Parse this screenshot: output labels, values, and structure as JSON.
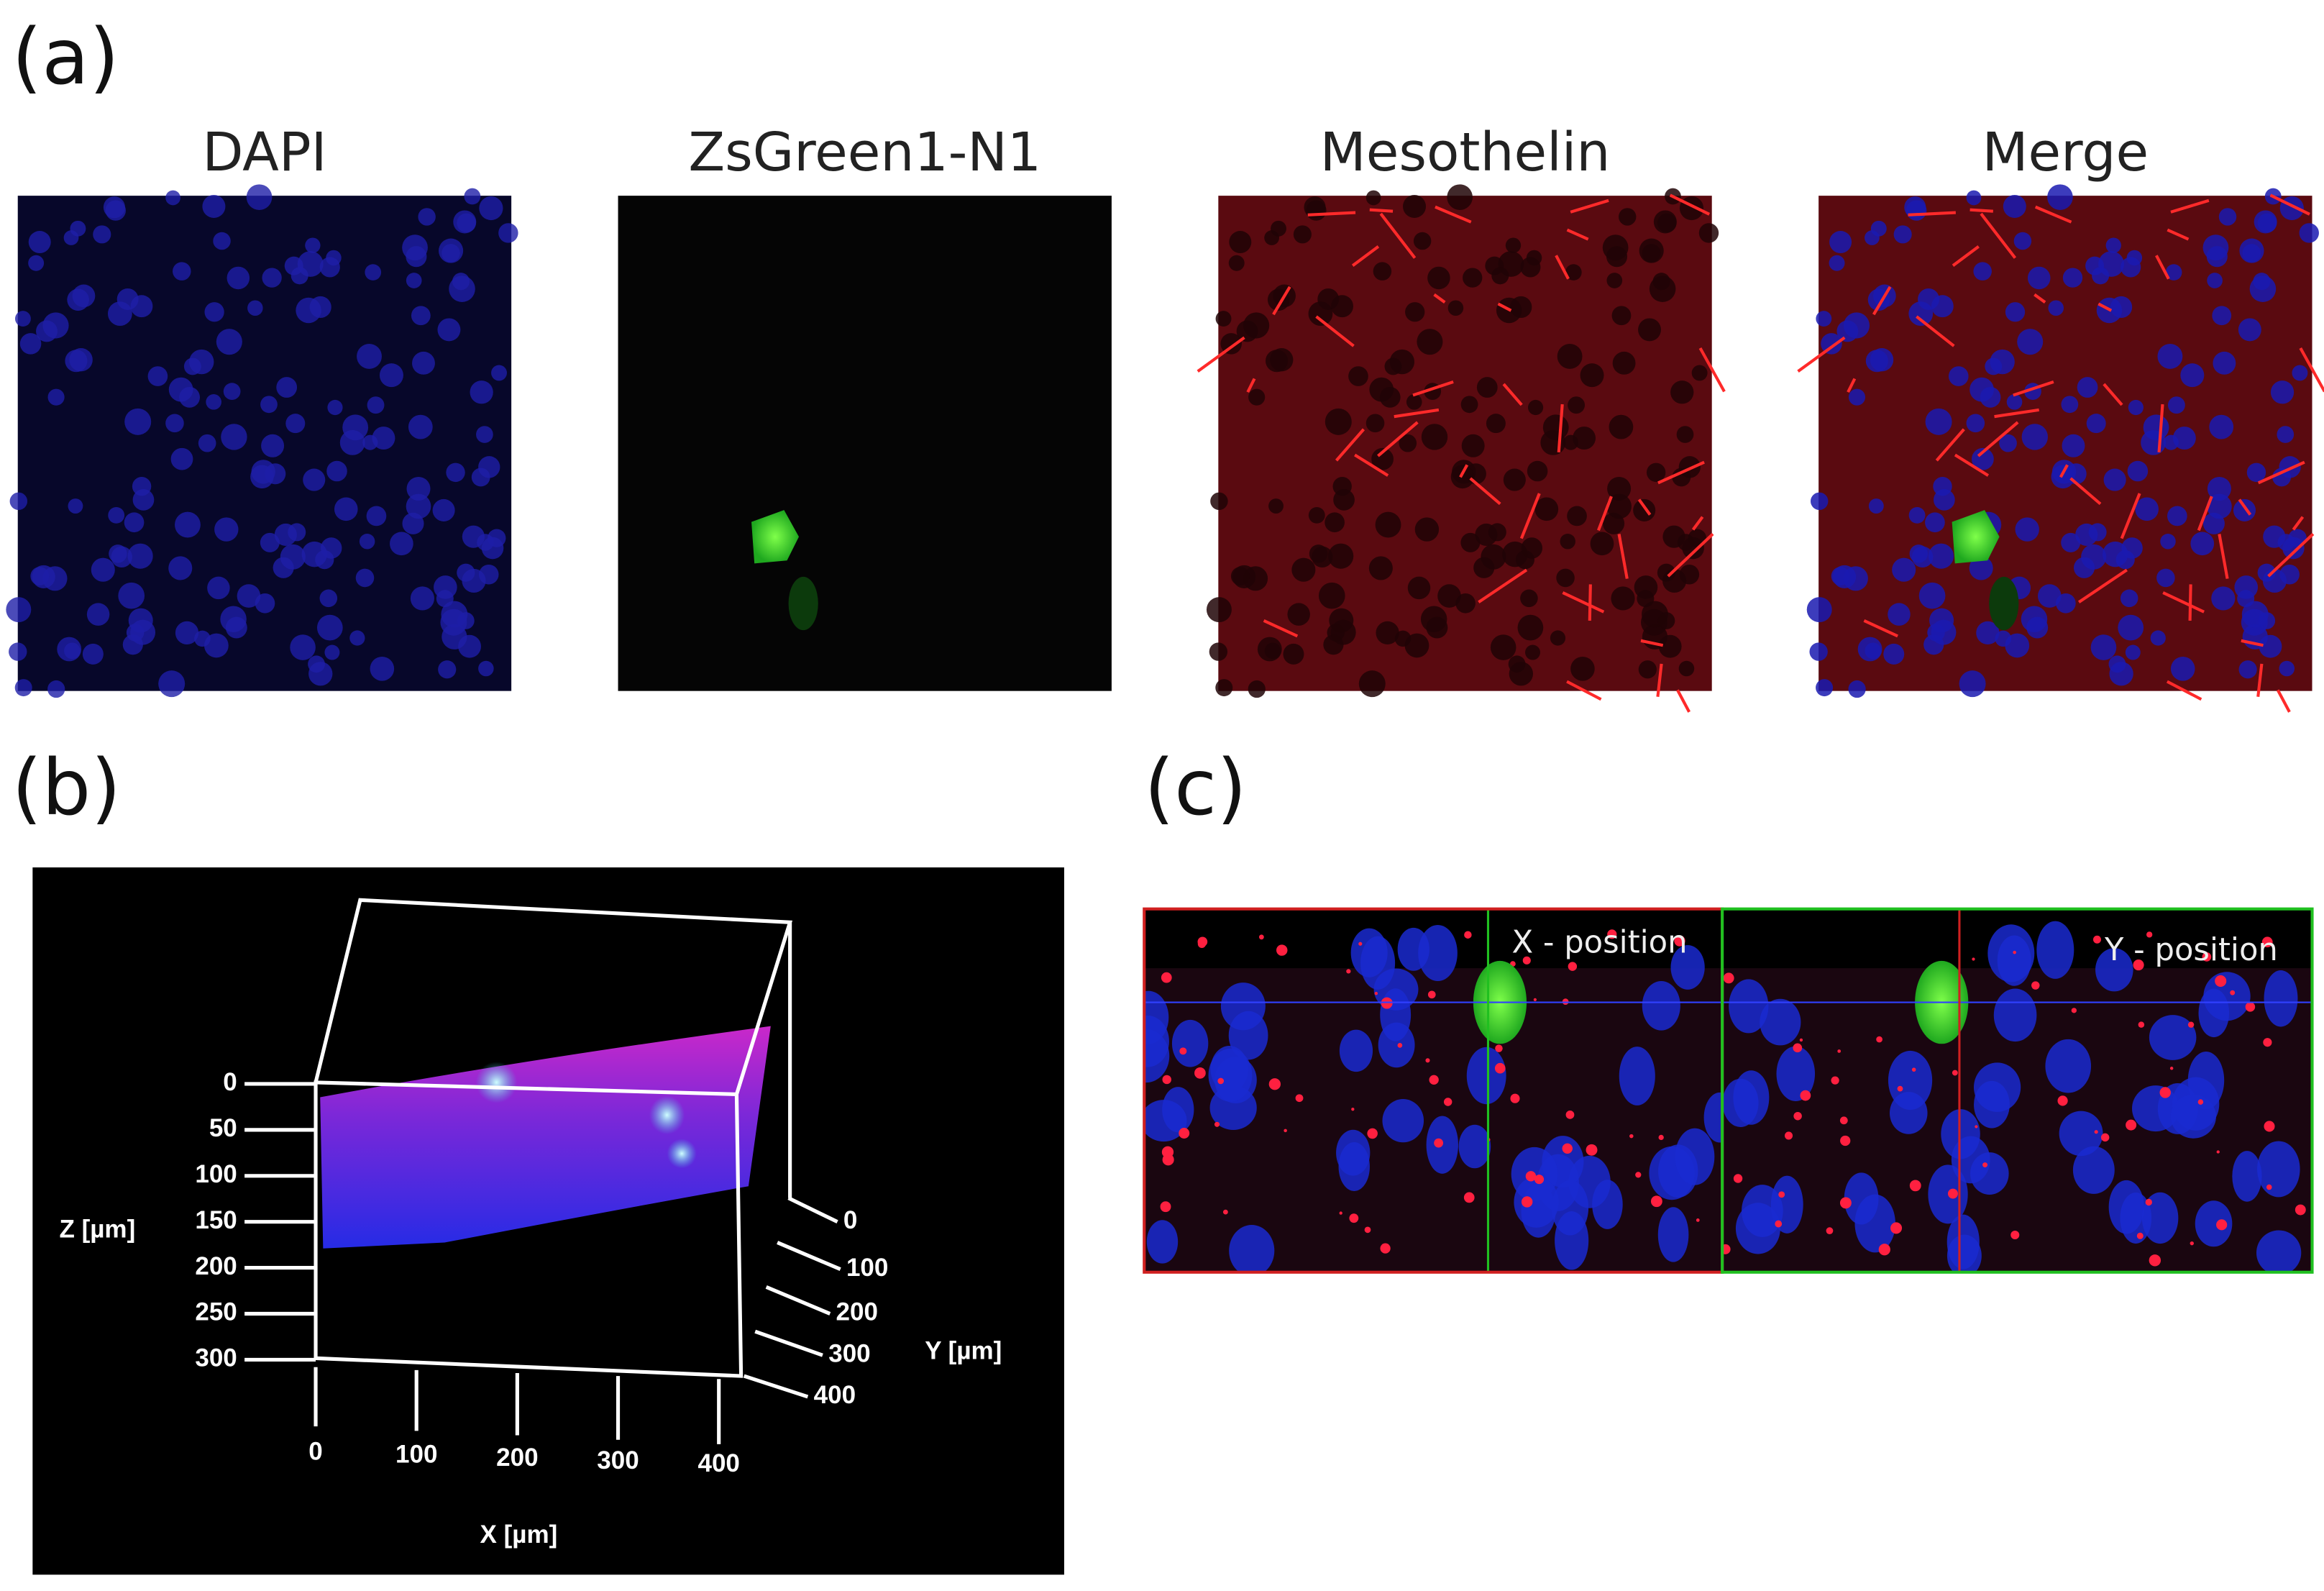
{
  "panel_a": {
    "label": "(a)",
    "titles": [
      "DAPI",
      "ZsGreen1-N1",
      "Mesothelin",
      "Merge"
    ]
  },
  "panel_b": {
    "label": "(b)",
    "z_axis": {
      "title": "Z [µm]",
      "ticks": [
        0,
        50,
        100,
        150,
        200,
        250,
        300
      ]
    },
    "x_axis": {
      "title": "X [µm]",
      "ticks": [
        0,
        100,
        200,
        300,
        400
      ]
    },
    "y_axis": {
      "title": "Y [µm]",
      "ticks": [
        0,
        100,
        200,
        300,
        400
      ]
    }
  },
  "panel_c": {
    "label": "(c)",
    "views": [
      "X - position",
      "Y - position"
    ]
  }
}
